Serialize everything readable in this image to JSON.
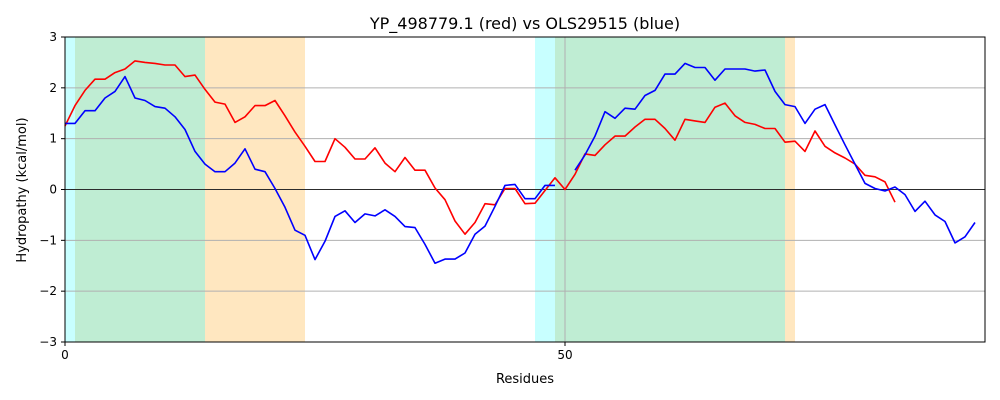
{
  "chart_data": {
    "type": "line",
    "title": "YP_498779.1 (red) vs OLS29515 (blue)",
    "xlabel": "Residues",
    "ylabel": "Hydropathy (kcal/mol)",
    "xlim": [
      0,
      92
    ],
    "ylim": [
      -3,
      3
    ],
    "xticks": [
      0,
      50
    ],
    "yticks": [
      -3,
      -2,
      -1,
      0,
      1,
      2,
      3
    ],
    "grid": "horizontal",
    "regions": [
      {
        "x0": 0,
        "x1": 1,
        "color": "#c8ffff"
      },
      {
        "x0": 1,
        "x1": 14,
        "color": "#bfedd3"
      },
      {
        "x0": 14,
        "x1": 24,
        "color": "#ffe7c0"
      },
      {
        "x0": 47,
        "x1": 49,
        "color": "#c8ffff"
      },
      {
        "x0": 49,
        "x1": 72,
        "color": "#bfedd3"
      },
      {
        "x0": 72,
        "x1": 73,
        "color": "#ffe7c0"
      }
    ],
    "reference_lines": {
      "y": 0,
      "x": 50
    },
    "series": [
      {
        "color": "#ff0000",
        "segments": [
          {
            "x": [
              0,
              1,
              2,
              3,
              4,
              5,
              6,
              7,
              8,
              9,
              10,
              11,
              12,
              13,
              14,
              15,
              16,
              17,
              18,
              19,
              20,
              21,
              22,
              23,
              24,
              25,
              26,
              27,
              28,
              29,
              30,
              31,
              32,
              33,
              34,
              35,
              36,
              37,
              38,
              39,
              40,
              41,
              42,
              43,
              44,
              45,
              46,
              47,
              48,
              49,
              50,
              51,
              52,
              53,
              54,
              55,
              56,
              57,
              58,
              59,
              60,
              61,
              62,
              63,
              64,
              65,
              66,
              67,
              68,
              69,
              70,
              71,
              72,
              73,
              74,
              75,
              76,
              77,
              78,
              79,
              80,
              81,
              82,
              83
            ],
            "y": [
              1.25,
              1.65,
              1.95,
              2.17,
              2.17,
              2.3,
              2.37,
              2.53,
              2.5,
              2.48,
              2.45,
              2.45,
              2.22,
              2.25,
              1.97,
              1.72,
              1.68,
              1.32,
              1.43,
              1.65,
              1.65,
              1.75,
              1.45,
              1.13,
              0.85,
              0.55,
              0.55,
              1.0,
              0.83,
              0.6,
              0.6,
              0.82,
              0.52,
              0.35,
              0.63,
              0.38,
              0.38,
              0.03,
              -0.2,
              -0.62,
              -0.88,
              -0.65,
              -0.28,
              -0.3,
              0.02,
              0.02,
              -0.28,
              -0.27,
              -0.02,
              0.23,
              0.0,
              0.3,
              0.7,
              0.67,
              0.88,
              1.05,
              1.05,
              1.23,
              1.38,
              1.38,
              1.2,
              0.97,
              1.38,
              1.35,
              1.32,
              1.62,
              1.7,
              1.45,
              1.32,
              1.28,
              1.2,
              1.2,
              0.93,
              0.95,
              0.75,
              1.15,
              0.85,
              0.72,
              0.62,
              0.5,
              0.28,
              0.25,
              0.15,
              -0.25
            ]
          }
        ]
      },
      {
        "color": "#0000ff",
        "segments": [
          {
            "x": [
              0,
              1,
              2,
              3,
              4,
              5,
              6,
              7,
              8,
              9,
              10,
              11,
              12,
              13,
              14,
              15,
              16,
              17,
              18,
              19,
              20,
              21,
              22,
              23,
              24,
              25,
              26,
              27,
              28,
              29,
              30,
              31,
              32,
              33,
              34,
              35,
              36,
              37,
              38,
              39,
              40,
              41,
              42,
              43,
              44,
              45,
              46,
              47,
              48,
              49
            ],
            "y": [
              1.3,
              1.3,
              1.55,
              1.55,
              1.8,
              1.93,
              2.22,
              1.8,
              1.75,
              1.63,
              1.6,
              1.43,
              1.18,
              0.75,
              0.5,
              0.35,
              0.35,
              0.52,
              0.8,
              0.4,
              0.35,
              0.02,
              -0.35,
              -0.8,
              -0.9,
              -1.38,
              -1.02,
              -0.53,
              -0.42,
              -0.65,
              -0.48,
              -0.52,
              -0.4,
              -0.53,
              -0.73,
              -0.75,
              -1.08,
              -1.45,
              -1.37,
              -1.37,
              -1.25,
              -0.88,
              -0.72,
              -0.33,
              0.08,
              0.1,
              -0.18,
              -0.18,
              0.08,
              0.08
            ]
          },
          {
            "x": [
              51,
              52,
              53,
              54,
              55,
              56,
              57,
              58,
              59,
              60,
              61,
              62,
              63,
              64,
              65,
              66,
              67,
              68,
              69,
              70,
              71,
              72,
              73,
              74,
              75,
              76,
              77,
              78,
              79,
              80,
              81,
              82,
              83,
              84,
              85,
              86,
              87,
              88,
              89,
              90,
              91
            ],
            "y": [
              0.38,
              0.68,
              1.05,
              1.53,
              1.4,
              1.6,
              1.58,
              1.85,
              1.95,
              2.27,
              2.27,
              2.48,
              2.4,
              2.4,
              2.15,
              2.37,
              2.37,
              2.37,
              2.33,
              2.35,
              1.93,
              1.67,
              1.63,
              1.3,
              1.58,
              1.67,
              1.27,
              0.88,
              0.5,
              0.12,
              0.02,
              -0.03,
              0.05,
              -0.1,
              -0.43,
              -0.23,
              -0.5,
              -0.63,
              -1.05,
              -0.93,
              -0.65
            ]
          }
        ]
      }
    ]
  }
}
